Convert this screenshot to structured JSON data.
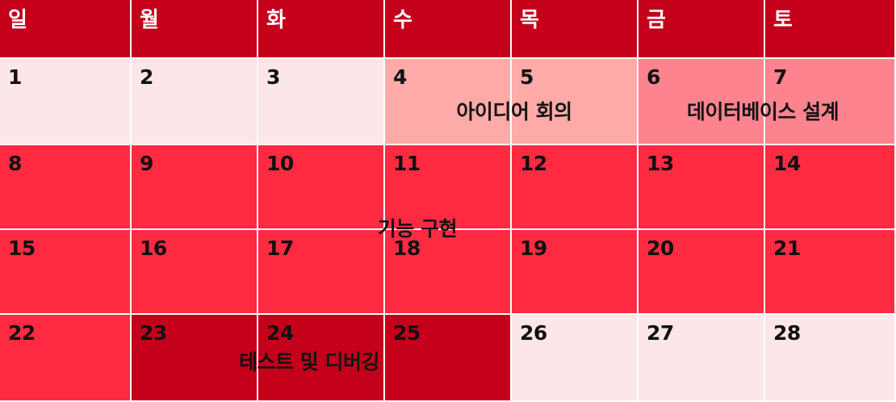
{
  "calendar": {
    "weekdays": [
      "일",
      "월",
      "화",
      "수",
      "목",
      "금",
      "토"
    ],
    "weeks": [
      [
        "1",
        "2",
        "3",
        "4",
        "5",
        "6",
        "7"
      ],
      [
        "8",
        "9",
        "10",
        "11",
        "12",
        "13",
        "14"
      ],
      [
        "15",
        "16",
        "17",
        "18",
        "19",
        "20",
        "21"
      ],
      [
        "22",
        "23",
        "24",
        "25",
        "26",
        "27",
        "28"
      ]
    ],
    "events": {
      "idea_meeting": "아이디어 회의",
      "db_design": "데이터베이스 설계",
      "implementation": "기능 구현",
      "testing": "테스트 및 디버깅"
    },
    "colors": {
      "header": "#c4001a",
      "empty": "#fde6e8",
      "idea_meeting": "#fdaaa8",
      "db_design": "#fd838f",
      "implementation": "#fd2a42",
      "testing": "#c4001a"
    }
  }
}
